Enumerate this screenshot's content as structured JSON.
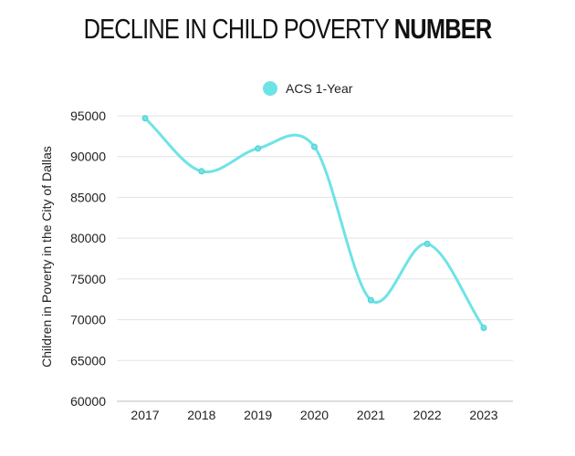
{
  "header": {
    "title_regular": "DECLINE IN CHILD POVERTY",
    "title_bold": "NUMBER"
  },
  "chart_data": {
    "type": "line",
    "title": "DECLINE IN CHILD POVERTY NUMBER",
    "ylabel": "Children in Poverty in the City of Dallas",
    "xlabel": "",
    "categories": [
      "2017",
      "2018",
      "2019",
      "2020",
      "2021",
      "2022",
      "2023"
    ],
    "y_ticks": [
      "95000",
      "90000",
      "85000",
      "80000",
      "75000",
      "70000",
      "65000",
      "60000"
    ],
    "ylim": [
      60000,
      95000
    ],
    "grid": true,
    "legend_position": "top-center",
    "series": [
      {
        "name": "ACS 1-Year",
        "color": "#6ee3e6",
        "values": [
          94700,
          88200,
          91000,
          91200,
          72400,
          79300,
          69000
        ]
      }
    ]
  }
}
